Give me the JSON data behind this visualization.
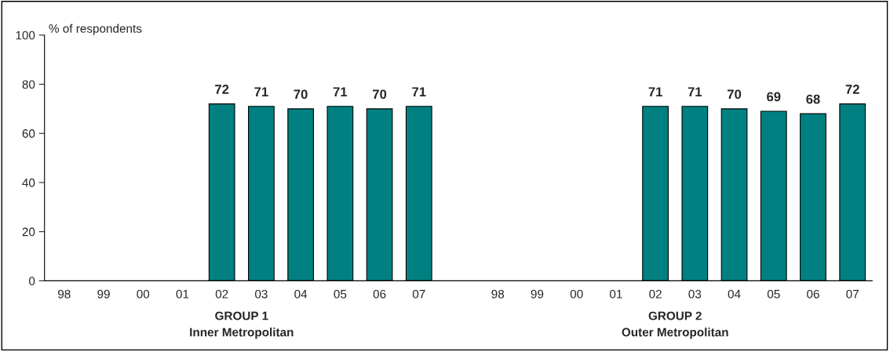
{
  "chart_data": {
    "type": "bar",
    "ylabel": "% of respondents",
    "categories": [
      "98",
      "99",
      "00",
      "01",
      "02",
      "03",
      "04",
      "05",
      "06",
      "07",
      null,
      "98",
      "99",
      "00",
      "01",
      "02",
      "03",
      "04",
      "05",
      "06",
      "07"
    ],
    "series": [
      {
        "color": "#008080",
        "values": [
          null,
          null,
          null,
          null,
          72,
          71,
          70,
          71,
          70,
          71,
          null,
          null,
          null,
          null,
          null,
          71,
          71,
          70,
          69,
          68,
          72
        ]
      }
    ],
    "ylim": [
      0,
      100
    ],
    "yticks": [
      0,
      20,
      40,
      60,
      80,
      100
    ],
    "grid": false,
    "legend": false,
    "data_labels": true,
    "annotations": [
      "GROUP 1\nInner Metropolitan",
      "GROUP 2\nOuter Metropolitan"
    ]
  }
}
